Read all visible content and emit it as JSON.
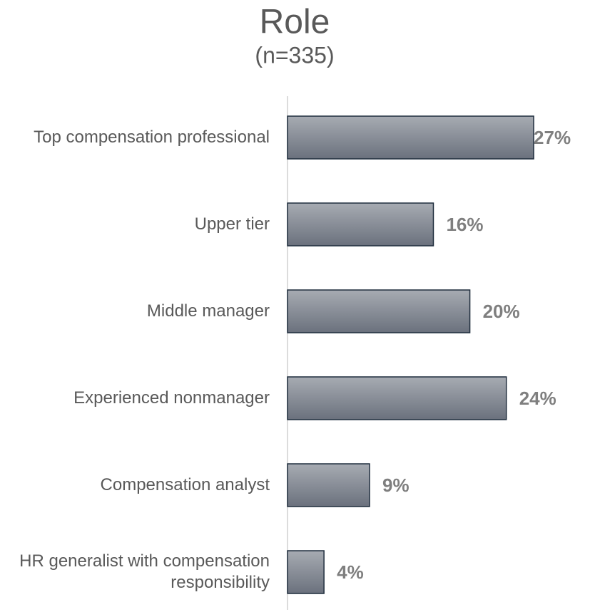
{
  "chart_data": {
    "type": "barh",
    "title": "Role",
    "subtitle": "(n=335)",
    "categories": [
      "Top compensation professional",
      "Upper tier",
      "Middle manager",
      "Experienced nonmanager",
      "Compensation analyst",
      "HR generalist with compensation responsibility"
    ],
    "values": [
      27,
      16,
      20,
      24,
      9,
      4
    ],
    "value_labels": [
      "27%",
      "16%",
      "20%",
      "24%",
      "9%",
      "4%"
    ],
    "color": "#8a8f98"
  }
}
